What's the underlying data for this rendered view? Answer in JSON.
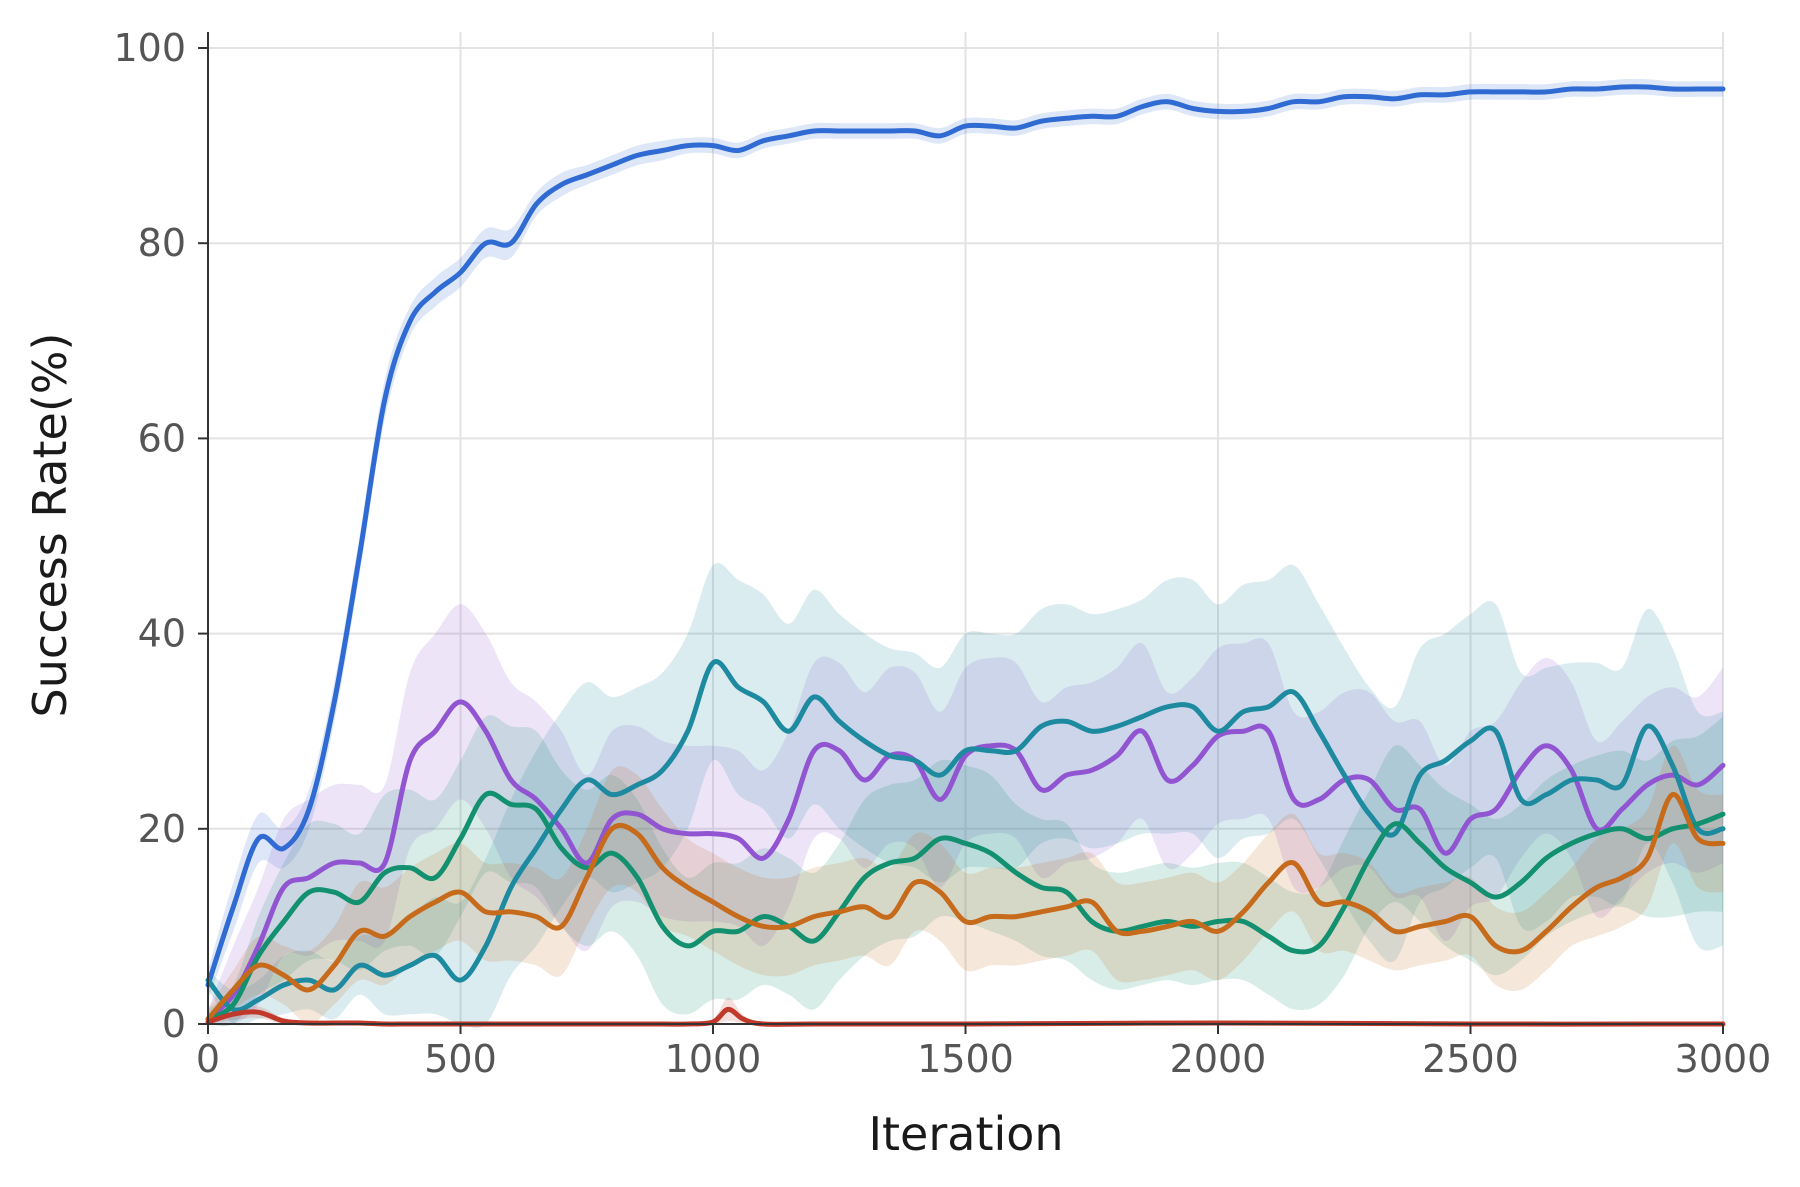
{
  "chart_data": {
    "type": "line",
    "title": "",
    "xlabel": "Iteration",
    "ylabel": "Success Rate(%)",
    "xlim": [
      0,
      3000
    ],
    "ylim": [
      0,
      100
    ],
    "xticks": [
      0,
      500,
      1000,
      1500,
      2000,
      2500,
      3000
    ],
    "yticks": [
      0,
      20,
      40,
      60,
      80,
      100
    ],
    "grid": true,
    "legend": "none",
    "series": [
      {
        "color": "#2f6bd2",
        "x": [
          0,
          50,
          100,
          150,
          200,
          250,
          300,
          350,
          400,
          450,
          500,
          550,
          600,
          650,
          700,
          750,
          800,
          850,
          900,
          950,
          1000,
          1050,
          1100,
          1150,
          1200,
          1250,
          1300,
          1350,
          1400,
          1450,
          1500,
          1550,
          1600,
          1650,
          1700,
          1750,
          1800,
          1850,
          1900,
          1950,
          2000,
          2050,
          2100,
          2150,
          2200,
          2250,
          2300,
          2350,
          2400,
          2450,
          2500,
          2550,
          2600,
          2650,
          2700,
          2750,
          2800,
          2850,
          2900,
          2950,
          3000
        ],
        "y": [
          4,
          12,
          19,
          18,
          22,
          33,
          48,
          64,
          72,
          75,
          77,
          80,
          80,
          84,
          86,
          87,
          88,
          89,
          89.5,
          90,
          90,
          89.5,
          90.5,
          91,
          91.5,
          91.5,
          91.5,
          91.5,
          91.5,
          91,
          92,
          92,
          91.8,
          92.5,
          92.8,
          93,
          93,
          94,
          94.5,
          93.8,
          93.5,
          93.5,
          93.8,
          94.5,
          94.5,
          95,
          95,
          94.8,
          95.2,
          95.2,
          95.5,
          95.5,
          95.5,
          95.5,
          95.8,
          95.8,
          96,
          96,
          95.8,
          95.8,
          95.8
        ],
        "band": [
          1.5,
          2.5,
          2.5,
          2,
          2,
          2,
          2,
          2,
          1.5,
          1.5,
          1.5,
          1.5,
          1.5,
          1.2,
          1.2,
          1,
          1,
          1,
          1,
          0.8,
          0.8,
          0.8,
          0.8,
          0.8,
          0.8,
          0.8,
          0.8,
          0.8,
          0.8,
          0.8,
          0.8,
          0.8,
          0.8,
          0.8,
          0.8,
          0.8,
          0.8,
          0.8,
          0.8,
          0.8,
          0.8,
          0.8,
          0.8,
          0.8,
          0.8,
          0.8,
          0.8,
          0.8,
          0.8,
          0.8,
          0.8,
          0.8,
          0.8,
          0.8,
          0.8,
          0.8,
          0.8,
          0.8,
          0.8,
          0.8,
          0.8
        ]
      },
      {
        "color": "#9155d1",
        "x": [
          0,
          50,
          100,
          150,
          200,
          250,
          300,
          350,
          400,
          450,
          500,
          550,
          600,
          650,
          700,
          750,
          800,
          850,
          900,
          950,
          1000,
          1050,
          1100,
          1150,
          1200,
          1250,
          1300,
          1350,
          1400,
          1450,
          1500,
          1550,
          1600,
          1650,
          1700,
          1750,
          1800,
          1850,
          1900,
          1950,
          2000,
          2050,
          2100,
          2150,
          2200,
          2250,
          2300,
          2350,
          2400,
          2450,
          2500,
          2550,
          2600,
          2650,
          2700,
          2750,
          2800,
          2850,
          2900,
          2950,
          3000
        ],
        "y": [
          0.5,
          3,
          8,
          14,
          15,
          16.5,
          16.5,
          16.5,
          27,
          30,
          33,
          30,
          25,
          23,
          20,
          16.5,
          21,
          21.5,
          20,
          19.5,
          19.5,
          19,
          17,
          21,
          28,
          28,
          25,
          27.5,
          27,
          23,
          27.5,
          28.5,
          28,
          24,
          25.5,
          26,
          27.5,
          30,
          25,
          26.5,
          29.5,
          30,
          30,
          23,
          23,
          25,
          25,
          22,
          22,
          17.5,
          21,
          22,
          26,
          28.5,
          26,
          20,
          22,
          24.5,
          25.5,
          24.5,
          26.5
        ],
        "band": [
          1,
          5,
          6,
          7,
          8,
          8,
          8,
          8,
          9,
          10,
          10,
          10,
          10,
          10,
          10,
          9,
          9,
          9,
          9,
          9,
          9,
          9,
          9,
          9,
          9,
          9,
          9,
          9,
          9,
          9,
          9,
          9,
          9,
          9,
          9,
          9,
          9,
          9,
          9,
          9,
          9,
          9,
          9,
          9,
          9,
          9,
          9,
          9,
          9,
          9,
          9,
          9,
          9,
          9,
          9,
          9,
          9,
          9,
          9,
          9,
          10
        ]
      },
      {
        "color": "#1e8aa0",
        "x": [
          0,
          50,
          100,
          150,
          200,
          250,
          300,
          350,
          400,
          450,
          500,
          550,
          600,
          650,
          700,
          750,
          800,
          850,
          900,
          950,
          1000,
          1050,
          1100,
          1150,
          1200,
          1250,
          1300,
          1350,
          1400,
          1450,
          1500,
          1550,
          1600,
          1650,
          1700,
          1750,
          1800,
          1850,
          1900,
          1950,
          2000,
          2050,
          2100,
          2150,
          2200,
          2250,
          2300,
          2350,
          2400,
          2450,
          2500,
          2550,
          2600,
          2650,
          2700,
          2750,
          2800,
          2850,
          2900,
          2950,
          3000
        ],
        "y": [
          4.5,
          1.5,
          2.5,
          4,
          4.5,
          3.5,
          6,
          5,
          6,
          7,
          4.5,
          8,
          14,
          18,
          22,
          25,
          23.5,
          24.5,
          26,
          30,
          37,
          34.5,
          33,
          30,
          33.5,
          31,
          29,
          27.5,
          27,
          25.5,
          28,
          28,
          28,
          30.5,
          31,
          30,
          30.5,
          31.5,
          32.5,
          32.5,
          30,
          32,
          32.5,
          34,
          30,
          25.5,
          21.5,
          19.5,
          25.5,
          27,
          29,
          30,
          23,
          23.5,
          25,
          25,
          24.5,
          30.5,
          26.5,
          20,
          20
        ],
        "band": [
          1,
          2,
          2,
          3,
          3,
          3,
          3,
          4,
          5,
          6,
          8,
          9,
          9,
          10,
          10,
          10,
          10,
          10,
          10,
          10,
          10,
          11,
          11,
          11,
          11,
          11,
          11,
          11,
          11,
          11,
          12,
          12,
          12,
          12,
          12,
          12,
          12,
          12,
          13,
          13,
          13,
          13,
          13,
          13,
          13,
          13,
          13,
          13,
          13,
          13,
          13,
          13,
          13,
          13,
          12,
          12,
          12,
          12,
          12,
          12,
          12
        ]
      },
      {
        "color": "#13906f",
        "x": [
          0,
          50,
          100,
          150,
          200,
          250,
          300,
          350,
          400,
          450,
          500,
          550,
          600,
          650,
          700,
          750,
          800,
          850,
          900,
          950,
          1000,
          1050,
          1100,
          1150,
          1200,
          1250,
          1300,
          1350,
          1400,
          1450,
          1500,
          1550,
          1600,
          1650,
          1700,
          1750,
          1800,
          1850,
          1900,
          1950,
          2000,
          2050,
          2100,
          2150,
          2200,
          2250,
          2300,
          2350,
          2400,
          2450,
          2500,
          2550,
          2600,
          2650,
          2700,
          2750,
          2800,
          2850,
          2900,
          2950,
          3000
        ],
        "y": [
          0.5,
          2,
          7,
          10.5,
          13.5,
          13.5,
          12.5,
          15.5,
          16,
          15,
          19,
          23.5,
          22.5,
          22,
          18,
          16,
          17.5,
          15,
          10,
          8,
          9.5,
          9.5,
          11,
          10,
          8.5,
          11.5,
          15,
          16.5,
          17,
          19,
          18.5,
          17.5,
          15.5,
          14,
          13.5,
          10.5,
          9.5,
          10,
          10.5,
          10,
          10.5,
          10.5,
          9,
          7.5,
          8,
          12,
          17,
          20.5,
          18.5,
          16,
          14.5,
          13,
          14.5,
          17,
          18.5,
          19.5,
          20,
          19,
          20,
          20.5,
          21.5
        ],
        "band": [
          1,
          2,
          4,
          6,
          7,
          7,
          7,
          8,
          8,
          8,
          8,
          8,
          8,
          8,
          8,
          8,
          8,
          8,
          8,
          7,
          7,
          7,
          7,
          7,
          7,
          7,
          8,
          8,
          8,
          8,
          8,
          8,
          7,
          7,
          7,
          6,
          6,
          6,
          6,
          6,
          6,
          6,
          6,
          6,
          6,
          7,
          7,
          8,
          8,
          8,
          8,
          8,
          8,
          8,
          8,
          8,
          8,
          8,
          9,
          9,
          10
        ]
      },
      {
        "color": "#c66a1c",
        "x": [
          0,
          50,
          100,
          150,
          200,
          250,
          300,
          350,
          400,
          450,
          500,
          550,
          600,
          650,
          700,
          750,
          800,
          850,
          900,
          950,
          1000,
          1050,
          1100,
          1150,
          1200,
          1250,
          1300,
          1350,
          1400,
          1450,
          1500,
          1550,
          1600,
          1650,
          1700,
          1750,
          1800,
          1850,
          1900,
          1950,
          2000,
          2050,
          2100,
          2150,
          2200,
          2250,
          2300,
          2350,
          2400,
          2450,
          2500,
          2550,
          2600,
          2650,
          2700,
          2750,
          2800,
          2850,
          2900,
          2950,
          3000
        ],
        "y": [
          0.5,
          3.5,
          6,
          5,
          3.5,
          6,
          9.5,
          9,
          11,
          12.5,
          13.5,
          11.5,
          11.5,
          11,
          10,
          15,
          20,
          19.5,
          16,
          14,
          12.5,
          11,
          10,
          10,
          11,
          11.5,
          12,
          11,
          14.5,
          13.5,
          10.5,
          11,
          11,
          11.5,
          12,
          12.5,
          9.5,
          9.5,
          10,
          10.5,
          9.5,
          11.5,
          14.5,
          16.5,
          12.5,
          12.5,
          11.5,
          9.5,
          10,
          10.5,
          11,
          8,
          7.5,
          9.5,
          12,
          14,
          15,
          17,
          23.5,
          19,
          18.5
        ],
        "band": [
          1,
          2,
          3,
          3,
          4,
          4,
          5,
          5,
          5,
          5,
          5,
          5,
          5,
          5,
          5,
          5,
          6,
          6,
          6,
          5,
          5,
          5,
          5,
          5,
          5,
          5,
          5,
          5,
          5,
          5,
          5,
          5,
          5,
          5,
          5,
          5,
          5,
          5,
          5,
          5,
          5,
          5,
          5,
          5,
          5,
          5,
          5,
          4,
          4,
          4,
          4,
          4,
          4,
          4,
          4,
          5,
          5,
          5,
          5,
          5,
          5
        ]
      },
      {
        "color": "#c0392b",
        "x": [
          0,
          50,
          100,
          150,
          200,
          250,
          300,
          350,
          400,
          500,
          600,
          700,
          800,
          900,
          950,
          1000,
          1030,
          1060,
          1100,
          1200,
          1500,
          2000,
          2500,
          3000
        ],
        "y": [
          0.2,
          1,
          1.2,
          0.3,
          0.1,
          0.1,
          0.1,
          0,
          0,
          0,
          0,
          0,
          0,
          0,
          0,
          0.2,
          1.5,
          0.5,
          0,
          0,
          0,
          0.1,
          0,
          0
        ],
        "band": [
          0.2,
          0.6,
          0.6,
          0.3,
          0.1,
          0.1,
          0.1,
          0,
          0,
          0,
          0,
          0,
          0,
          0,
          0,
          0.3,
          1.2,
          0.4,
          0,
          0,
          0,
          0,
          0,
          0
        ]
      }
    ]
  }
}
